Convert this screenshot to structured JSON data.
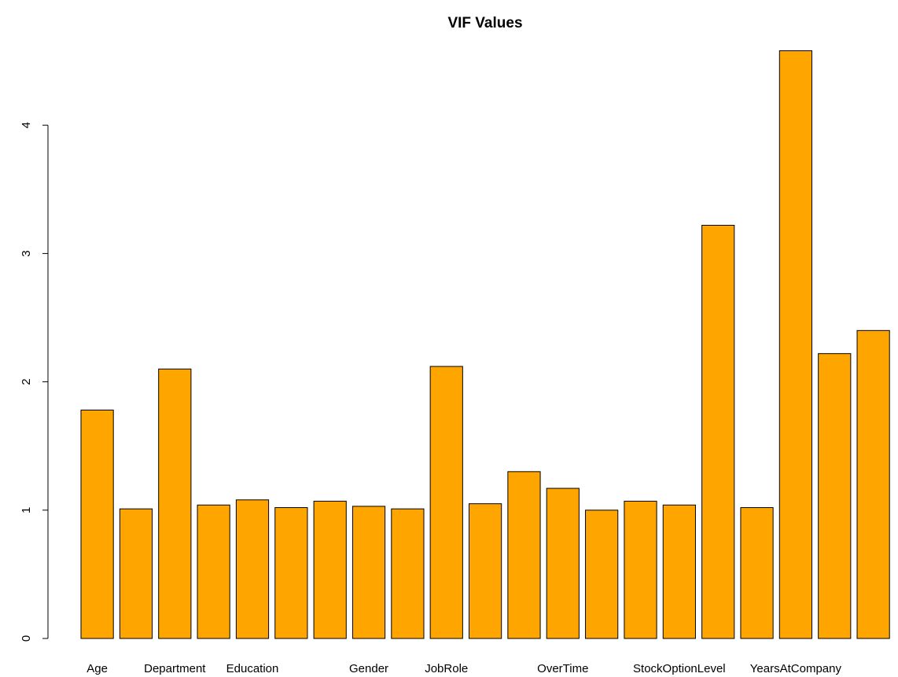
{
  "chart_data": {
    "type": "bar",
    "title": "VIF Values",
    "xlabel": "",
    "ylabel": "",
    "ylim": [
      0,
      4.6
    ],
    "yticks": [
      0,
      1,
      2,
      3,
      4
    ],
    "bar_color": "#FFA500",
    "bar_border": "#000000",
    "grid": false,
    "categories": [
      "Age",
      "",
      "Department",
      "",
      "Education",
      "",
      "",
      "Gender",
      "",
      "JobRole",
      "",
      "",
      "OverTime",
      "",
      "",
      "StockOptionLevel",
      "",
      "",
      "YearsAtCompany",
      "",
      ""
    ],
    "values": [
      1.78,
      1.01,
      2.1,
      1.04,
      1.08,
      1.02,
      1.07,
      1.03,
      1.01,
      2.12,
      1.05,
      1.3,
      1.17,
      1.0,
      1.07,
      1.04,
      3.22,
      1.02,
      4.58,
      2.22,
      2.4
    ]
  }
}
